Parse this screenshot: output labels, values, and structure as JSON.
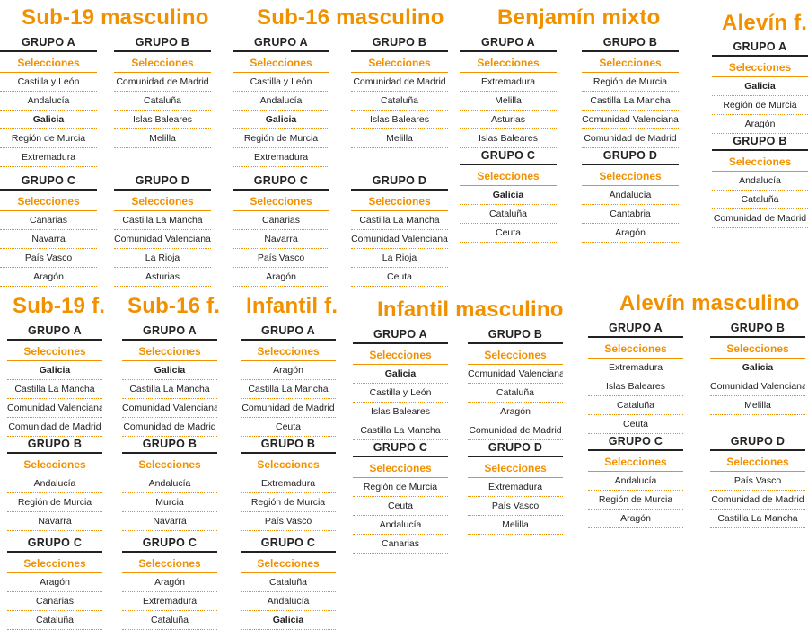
{
  "sections": [
    {
      "title": "Sub-19 masculino",
      "groups": [
        {
          "name": "GRUPO A",
          "sel": "Selecciones",
          "teams": [
            "Castilla y León",
            "Andalucía",
            "Galicia",
            "Región de Murcia",
            "Extremadura"
          ],
          "bold": [
            "Galicia"
          ]
        },
        {
          "name": "GRUPO B",
          "sel": "Selecciones",
          "teams": [
            "Comunidad de Madrid",
            "Cataluña",
            "Islas Baleares",
            "Melilla"
          ],
          "bold": []
        },
        {
          "name": "GRUPO C",
          "sel": "Selecciones",
          "teams": [
            "Canarias",
            "Navarra",
            "País Vasco",
            "Aragón"
          ],
          "bold": []
        },
        {
          "name": "GRUPO D",
          "sel": "Selecciones",
          "teams": [
            "Castilla La Mancha",
            "Comunidad Valenciana",
            "La Rioja",
            "Asturias"
          ],
          "bold": []
        }
      ]
    },
    {
      "title": "Sub-16 masculino",
      "groups": [
        {
          "name": "GRUPO A",
          "sel": "Selecciones",
          "teams": [
            "Castilla y León",
            "Andalucía",
            "Galicia",
            "Región de Murcia",
            "Extremadura"
          ],
          "bold": [
            "Galicia"
          ]
        },
        {
          "name": "GRUPO B",
          "sel": "Selecciones",
          "teams": [
            "Comunidad de Madrid",
            "Cataluña",
            "Islas Baleares",
            "Melilla"
          ],
          "bold": []
        },
        {
          "name": "GRUPO C",
          "sel": "Selecciones",
          "teams": [
            "Canarias",
            "Navarra",
            "País Vasco",
            "Aragón"
          ],
          "bold": []
        },
        {
          "name": "GRUPO D",
          "sel": "Selecciones",
          "teams": [
            "Castilla La Mancha",
            "Comunidad Valenciana",
            "La Rioja",
            "Ceuta"
          ],
          "bold": []
        }
      ]
    },
    {
      "title": "Benjamín mixto",
      "groups": [
        {
          "name": "GRUPO A",
          "sel": "Selecciones",
          "teams": [
            "Extremadura",
            "Melilla",
            "Asturias",
            "Islas Baleares"
          ],
          "bold": []
        },
        {
          "name": "GRUPO B",
          "sel": "Selecciones",
          "teams": [
            "Región de Murcia",
            "Castilla La Mancha",
            "Comunidad Valenciana",
            "Comunidad de Madrid"
          ],
          "bold": []
        },
        {
          "name": "GRUPO C",
          "sel": "Selecciones",
          "teams": [
            "Galicia",
            "Cataluña",
            "Ceuta"
          ],
          "bold": [
            "Galicia"
          ]
        },
        {
          "name": "GRUPO D",
          "sel": "Selecciones",
          "teams": [
            "Andalucía",
            "Cantabria",
            "Aragón"
          ],
          "bold": []
        }
      ]
    },
    {
      "title": "Alevín f.",
      "groups": [
        {
          "name": "GRUPO A",
          "sel": "Selecciones",
          "teams": [
            "Galicia",
            "Región de Murcia",
            "Aragón"
          ],
          "bold": [
            "Galicia"
          ]
        },
        {
          "name": "GRUPO B",
          "sel": "Selecciones",
          "teams": [
            "Andalucía",
            "Cataluña",
            "Comunidad de Madrid"
          ],
          "bold": []
        }
      ]
    },
    {
      "title": "Sub-19 f.",
      "groups": [
        {
          "name": "GRUPO A",
          "sel": "Selecciones",
          "teams": [
            "Galicia",
            "Castilla La Mancha",
            "Comunidad Valenciana",
            "Comunidad de Madrid"
          ],
          "bold": [
            "Galicia"
          ]
        },
        {
          "name": "GRUPO B",
          "sel": "Selecciones",
          "teams": [
            "Andalucía",
            "Región de Murcia",
            "Navarra"
          ],
          "bold": []
        },
        {
          "name": "GRUPO C",
          "sel": "Selecciones",
          "teams": [
            "Aragón",
            "Canarias",
            "Cataluña"
          ],
          "bold": []
        }
      ]
    },
    {
      "title": "Sub-16 f.",
      "groups": [
        {
          "name": "GRUPO A",
          "sel": "Selecciones",
          "teams": [
            "Galicia",
            "Castilla La Mancha",
            "Comunidad Valenciana",
            "Comunidad de Madrid"
          ],
          "bold": [
            "Galicia"
          ]
        },
        {
          "name": "GRUPO B",
          "sel": "Selecciones",
          "teams": [
            "Andalucía",
            "Murcia",
            "Navarra"
          ],
          "bold": []
        },
        {
          "name": "GRUPO C",
          "sel": "Selecciones",
          "teams": [
            "Aragón",
            "Extremadura",
            "Cataluña"
          ],
          "bold": []
        }
      ]
    },
    {
      "title": "Infantil f.",
      "groups": [
        {
          "name": "GRUPO A",
          "sel": "Selecciones",
          "teams": [
            "Aragón",
            "Castilla La Mancha",
            "Comunidad de Madrid",
            "Ceuta"
          ],
          "bold": []
        },
        {
          "name": "GRUPO B",
          "sel": "Selecciones",
          "teams": [
            "Extremadura",
            "Región de Murcia",
            "País Vasco"
          ],
          "bold": []
        },
        {
          "name": "GRUPO C",
          "sel": "Selecciones",
          "teams": [
            "Cataluña",
            "Andalucía",
            "Galicia"
          ],
          "bold": [
            "Galicia"
          ]
        }
      ]
    },
    {
      "title": "Infantil masculino",
      "groups": [
        {
          "name": "GRUPO A",
          "sel": "Selecciones",
          "teams": [
            "Galicia",
            "Castilla y León",
            "Islas Baleares",
            "Castilla La Mancha"
          ],
          "bold": [
            "Galicia"
          ]
        },
        {
          "name": "GRUPO B",
          "sel": "Selecciones",
          "teams": [
            "Comunidad Valenciana",
            "Cataluña",
            "Aragón",
            "Comunidad de Madrid"
          ],
          "bold": []
        },
        {
          "name": "GRUPO C",
          "sel": "Selecciones",
          "teams": [
            "Región de Murcia",
            "Ceuta",
            "Andalucía",
            "Canarias"
          ],
          "bold": []
        },
        {
          "name": "GRUPO D",
          "sel": "Selecciones",
          "teams": [
            "Extremadura",
            "País Vasco",
            "Melilla"
          ],
          "bold": []
        }
      ]
    },
    {
      "title": "Alevín masculino",
      "groups": [
        {
          "name": "GRUPO A",
          "sel": "Selecciones",
          "teams": [
            "Extremadura",
            "Islas Baleares",
            "Cataluña",
            "Ceuta"
          ],
          "bold": []
        },
        {
          "name": "GRUPO B",
          "sel": "Selecciones",
          "teams": [
            "Galicia",
            "Comunidad Valenciana",
            "Melilla"
          ],
          "bold": [
            "Galicia"
          ]
        },
        {
          "name": "GRUPO C",
          "sel": "Selecciones",
          "teams": [
            "Andalucía",
            "Región de Murcia",
            "Aragón"
          ],
          "bold": []
        },
        {
          "name": "GRUPO D",
          "sel": "Selecciones",
          "teams": [
            "País Vasco",
            "Comunidad de Madrid",
            "Castilla La Mancha"
          ],
          "bold": []
        }
      ]
    },
    {
      "colors": {
        "accent": "#F29100",
        "text": "#222222",
        "background": "#ffffff"
      }
    }
  ]
}
